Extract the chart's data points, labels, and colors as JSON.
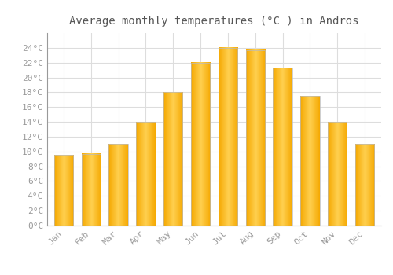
{
  "title": "Average monthly temperatures (°C ) in Andros",
  "months": [
    "Jan",
    "Feb",
    "Mar",
    "Apr",
    "May",
    "Jun",
    "Jul",
    "Aug",
    "Sep",
    "Oct",
    "Nov",
    "Dec"
  ],
  "temperatures": [
    9.5,
    9.7,
    11.0,
    14.0,
    18.0,
    22.0,
    24.0,
    23.7,
    21.3,
    17.5,
    14.0,
    11.0
  ],
  "bar_color_edge": "#F5A800",
  "bar_color_center": "#FFD050",
  "bar_border_color": "#BBBBBB",
  "background_color": "#FFFFFF",
  "grid_color": "#DDDDDD",
  "tick_label_color": "#999999",
  "title_color": "#555555",
  "ylim": [
    0,
    26
  ],
  "ytick_step": 2,
  "font_family": "monospace"
}
